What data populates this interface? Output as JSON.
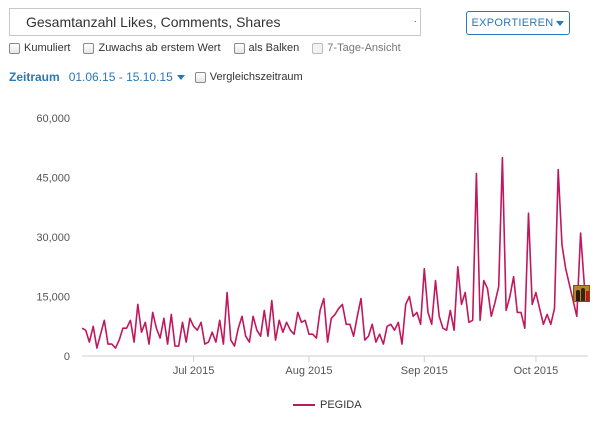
{
  "toolbar": {
    "metric_value": "Gesamtanzahl Likes, Comments, Shares",
    "export_label": "EXPORTIEREN"
  },
  "options": [
    {
      "label": "Kumuliert",
      "enabled": true
    },
    {
      "label": "Zuwachs ab erstem Wert",
      "enabled": true
    },
    {
      "label": "als Balken",
      "enabled": true
    },
    {
      "label": "7-Tage-Ansicht",
      "enabled": false
    }
  ],
  "range": {
    "label": "Zeitraum",
    "value": "01.06.15 - 15.10.15",
    "compare_label": "Vergleichszeitraum"
  },
  "colors": {
    "accent": "#2a78b8",
    "series": "#c0185c"
  },
  "chart_data": {
    "type": "line",
    "title": "",
    "xlabel": "",
    "ylabel": "",
    "x_start": "2015-06-01",
    "x_end": "2015-10-15",
    "x_ticks": [
      {
        "label": "Jul 2015",
        "date": "2015-07-01"
      },
      {
        "label": "Aug 2015",
        "date": "2015-08-01"
      },
      {
        "label": "Sep 2015",
        "date": "2015-09-01"
      },
      {
        "label": "Oct 2015",
        "date": "2015-10-01"
      }
    ],
    "y_ticks": [
      {
        "label": "0",
        "value": 0
      },
      {
        "label": "15,000",
        "value": 15000
      },
      {
        "label": "30,000",
        "value": 30000
      },
      {
        "label": "45,000",
        "value": 45000
      },
      {
        "label": "60,000",
        "value": 60000
      }
    ],
    "ylim": [
      0,
      60000
    ],
    "grid": false,
    "legend": "bottom",
    "series": [
      {
        "name": "PEGIDA",
        "x": [
          "2015-06-01",
          "2015-06-02",
          "2015-06-03",
          "2015-06-04",
          "2015-06-05",
          "2015-06-06",
          "2015-06-07",
          "2015-06-08",
          "2015-06-09",
          "2015-06-10",
          "2015-06-11",
          "2015-06-12",
          "2015-06-13",
          "2015-06-14",
          "2015-06-15",
          "2015-06-16",
          "2015-06-17",
          "2015-06-18",
          "2015-06-19",
          "2015-06-20",
          "2015-06-21",
          "2015-06-22",
          "2015-06-23",
          "2015-06-24",
          "2015-06-25",
          "2015-06-26",
          "2015-06-27",
          "2015-06-28",
          "2015-06-29",
          "2015-06-30",
          "2015-07-01",
          "2015-07-02",
          "2015-07-03",
          "2015-07-04",
          "2015-07-05",
          "2015-07-06",
          "2015-07-07",
          "2015-07-08",
          "2015-07-09",
          "2015-07-10",
          "2015-07-11",
          "2015-07-12",
          "2015-07-13",
          "2015-07-14",
          "2015-07-15",
          "2015-07-16",
          "2015-07-17",
          "2015-07-18",
          "2015-07-19",
          "2015-07-20",
          "2015-07-21",
          "2015-07-22",
          "2015-07-23",
          "2015-07-24",
          "2015-07-25",
          "2015-07-26",
          "2015-07-27",
          "2015-07-28",
          "2015-07-29",
          "2015-07-30",
          "2015-07-31",
          "2015-08-01",
          "2015-08-02",
          "2015-08-03",
          "2015-08-04",
          "2015-08-05",
          "2015-08-06",
          "2015-08-07",
          "2015-08-08",
          "2015-08-09",
          "2015-08-10",
          "2015-08-11",
          "2015-08-12",
          "2015-08-13",
          "2015-08-14",
          "2015-08-15",
          "2015-08-16",
          "2015-08-17",
          "2015-08-18",
          "2015-08-19",
          "2015-08-20",
          "2015-08-21",
          "2015-08-22",
          "2015-08-23",
          "2015-08-24",
          "2015-08-25",
          "2015-08-26",
          "2015-08-27",
          "2015-08-28",
          "2015-08-29",
          "2015-08-30",
          "2015-08-31",
          "2015-09-01",
          "2015-09-02",
          "2015-09-03",
          "2015-09-04",
          "2015-09-05",
          "2015-09-06",
          "2015-09-07",
          "2015-09-08",
          "2015-09-09",
          "2015-09-10",
          "2015-09-11",
          "2015-09-12",
          "2015-09-13",
          "2015-09-14",
          "2015-09-15",
          "2015-09-16",
          "2015-09-17",
          "2015-09-18",
          "2015-09-19",
          "2015-09-20",
          "2015-09-21",
          "2015-09-22",
          "2015-09-23",
          "2015-09-24",
          "2015-09-25",
          "2015-09-26",
          "2015-09-27",
          "2015-09-28",
          "2015-09-29",
          "2015-09-30",
          "2015-10-01",
          "2015-10-02",
          "2015-10-03",
          "2015-10-04",
          "2015-10-05",
          "2015-10-06",
          "2015-10-07",
          "2015-10-08",
          "2015-10-09",
          "2015-10-10",
          "2015-10-11",
          "2015-10-12",
          "2015-10-13",
          "2015-10-14",
          "2015-10-15"
        ],
        "values": [
          7000,
          6500,
          3500,
          7500,
          2000,
          5500,
          9000,
          3000,
          3000,
          2000,
          4000,
          7000,
          7000,
          9000,
          3500,
          13000,
          6000,
          8500,
          3000,
          11000,
          7000,
          4500,
          9500,
          3000,
          10500,
          2500,
          2500,
          8500,
          3500,
          9500,
          7500,
          6500,
          8500,
          3000,
          3500,
          6000,
          3500,
          9000,
          3000,
          16000,
          4000,
          2500,
          7000,
          10000,
          5000,
          3500,
          10000,
          6500,
          5000,
          11500,
          5000,
          14000,
          4000,
          9000,
          6000,
          8500,
          6500,
          5500,
          11000,
          8500,
          9000,
          5500,
          5500,
          4500,
          11500,
          14500,
          3500,
          9500,
          10500,
          12000,
          13000,
          8000,
          8000,
          5000,
          10000,
          14500,
          4000,
          5000,
          8000,
          3500,
          5500,
          3000,
          7500,
          8000,
          6500,
          8500,
          3000,
          13000,
          15000,
          10000,
          11000,
          8000,
          22000,
          11000,
          8000,
          19000,
          10000,
          7000,
          6500,
          11500,
          6500,
          22500,
          13000,
          16000,
          8500,
          9000,
          46000,
          9000,
          19000,
          17000,
          10000,
          13500,
          17500,
          50000,
          11500,
          15000,
          20000,
          11000,
          11000,
          7000,
          36000,
          13000,
          16000,
          12000,
          8000,
          10500,
          8000,
          12000,
          47000,
          28000,
          22000,
          18000,
          14000,
          10000,
          31000,
          18000,
          15500
        ]
      }
    ]
  }
}
